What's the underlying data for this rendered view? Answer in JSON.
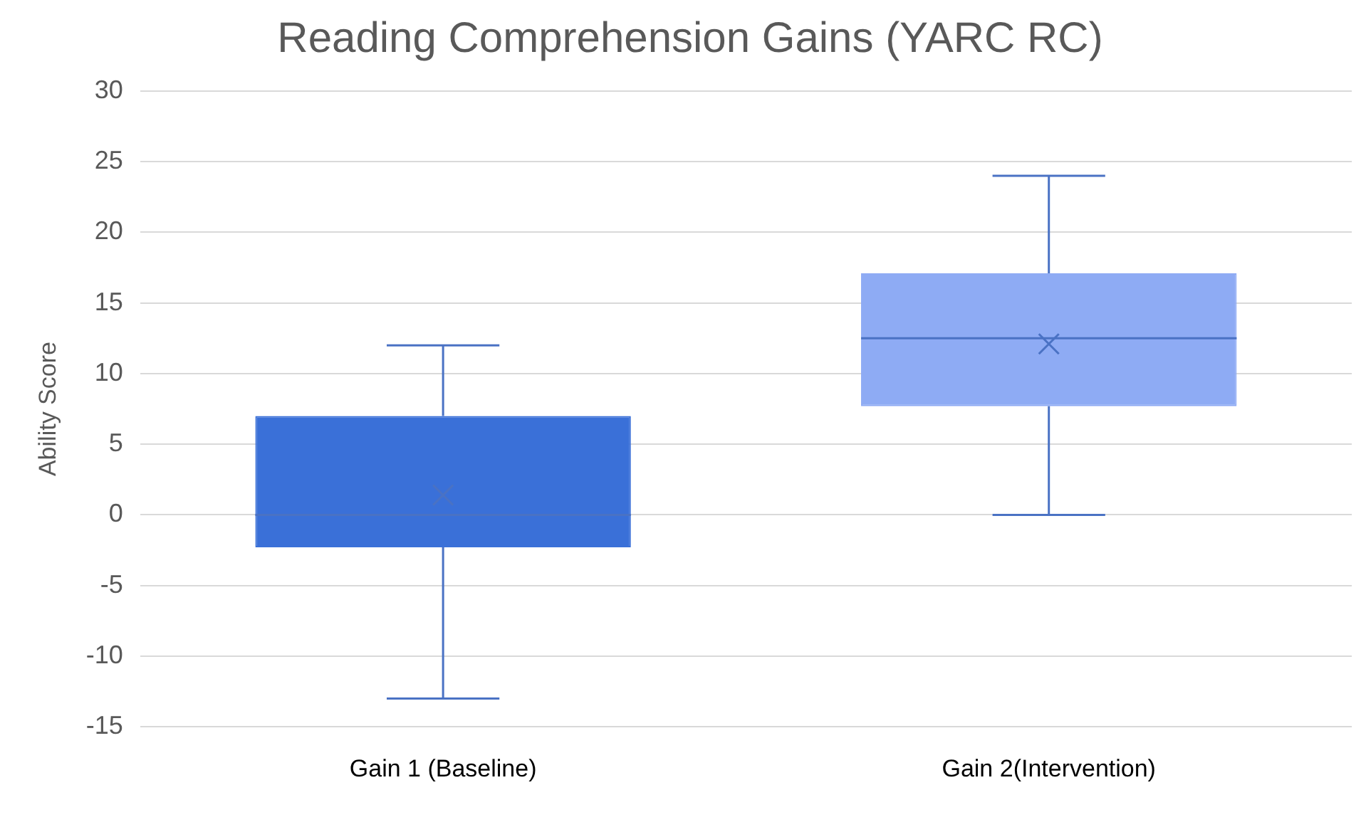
{
  "chart_data": {
    "type": "box",
    "title": "Reading Comprehension Gains (YARC RC)",
    "ylabel": "Ability Score",
    "categories": [
      "Gain 1 (Baseline)",
      "Gain 2(Intervention)"
    ],
    "boxes": [
      {
        "low": -13,
        "q1": -2.3,
        "median": 0,
        "q3": 7,
        "high": 12,
        "mean": 1.4
      },
      {
        "low": 0,
        "q1": 7.7,
        "median": 12.5,
        "q3": 17.1,
        "high": 24,
        "mean": 12.1
      }
    ],
    "colors": [
      "#3a70d8",
      "#8eabf4"
    ],
    "ylim": [
      -15,
      30
    ],
    "yticks": [
      -15,
      -10,
      -5,
      0,
      5,
      10,
      15,
      20,
      25,
      30
    ],
    "grid": "y",
    "legend": false
  }
}
